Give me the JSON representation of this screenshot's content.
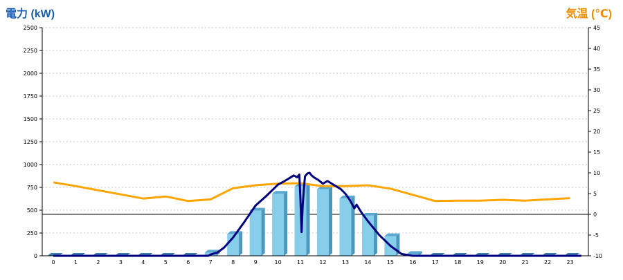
{
  "chart_data": {
    "type": "bar",
    "y_left_title": "電力 (kW)",
    "y_right_title": "気温 (℃)",
    "colors": {
      "left_title": "#1a5fb4",
      "right_title": "#f08c00",
      "bar_face": "#87ceeb",
      "bar_top": "#5aa8d0",
      "bar_side": "#4a97c0",
      "base_cap": "#3a7fb5",
      "power_line": "#000080",
      "temp_line": "#ffa500",
      "grid": "#c8c8c8",
      "axis": "#000000"
    },
    "y_left": {
      "min": 0,
      "max": 2500,
      "ticks": [
        0,
        250,
        500,
        750,
        1000,
        1250,
        1500,
        1750,
        2000,
        2250,
        2500
      ]
    },
    "y_right": {
      "min": -10,
      "max": 45,
      "ticks": [
        -10,
        -5,
        0,
        5,
        10,
        15,
        20,
        25,
        30,
        35,
        40,
        45
      ]
    },
    "categories": [
      "0",
      "1",
      "2",
      "3",
      "4",
      "5",
      "6",
      "7",
      "8",
      "9",
      "10",
      "11",
      "12",
      "13",
      "14",
      "15",
      "16",
      "17",
      "18",
      "19",
      "20",
      "21",
      "22",
      "23"
    ],
    "bars": {
      "values": [
        0,
        0,
        0,
        0,
        0,
        0,
        0,
        35,
        240,
        495,
        680,
        760,
        730,
        630,
        440,
        215,
        20,
        0,
        0,
        0,
        0,
        0,
        0,
        0
      ]
    },
    "power_line": {
      "x": [
        0,
        6.9,
        7,
        7.3,
        7.6,
        8,
        8.5,
        9,
        9.5,
        10,
        10.3,
        10.5,
        10.7,
        10.85,
        10.95,
        11,
        11.05,
        11.1,
        11.2,
        11.3,
        11.4,
        11.5,
        11.6,
        11.8,
        12,
        12.2,
        12.4,
        12.6,
        12.8,
        13,
        13.2,
        13.4,
        13.5,
        13.7,
        14,
        14.5,
        15,
        15.5,
        16,
        17,
        23.5
      ],
      "y": [
        0,
        0,
        15,
        35,
        90,
        200,
        370,
        550,
        660,
        780,
        820,
        850,
        880,
        860,
        890,
        610,
        260,
        560,
        870,
        900,
        910,
        880,
        860,
        830,
        790,
        820,
        790,
        760,
        730,
        680,
        610,
        520,
        560,
        480,
        380,
        230,
        110,
        20,
        0,
        0,
        0
      ]
    },
    "temp_line": {
      "x": [
        0,
        1,
        2,
        3,
        4,
        5,
        6,
        7,
        8,
        9,
        10,
        11,
        12,
        13,
        14,
        15,
        16,
        17,
        18,
        19,
        20,
        21,
        22,
        23
      ],
      "y": [
        7.7,
        6.8,
        5.8,
        4.8,
        3.8,
        4.3,
        3.2,
        3.6,
        6.3,
        7.0,
        7.4,
        7.5,
        6.8,
        6.8,
        7.0,
        6.2,
        4.7,
        3.2,
        3.3,
        3.3,
        3.5,
        3.3,
        3.6,
        3.9
      ]
    }
  }
}
